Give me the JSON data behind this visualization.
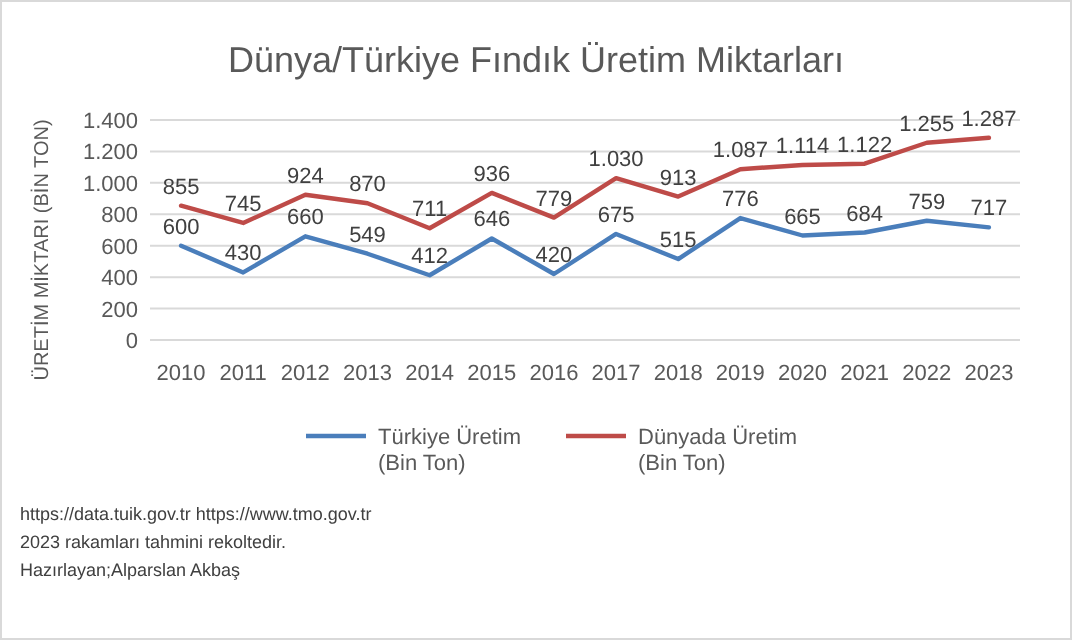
{
  "chart_data": {
    "type": "line",
    "title": "Dünya/Türkiye Fındık Üretim Miktarları",
    "ylabel": "ÜRETİM MİKTARI (BİN TON)",
    "categories": [
      "2010",
      "2011",
      "2012",
      "2013",
      "2014",
      "2015",
      "2016",
      "2017",
      "2018",
      "2019",
      "2020",
      "2021",
      "2022",
      "2023"
    ],
    "series": [
      {
        "name": "Türkiye Üretim (Bin Ton)",
        "color": "#4a7ebb",
        "values": [
          600,
          430,
          660,
          549,
          412,
          646,
          420,
          675,
          515,
          776,
          665,
          684,
          759,
          717
        ],
        "value_labels": [
          "600",
          "430",
          "660",
          "549",
          "412",
          "646",
          "420",
          "675",
          "515",
          "776",
          "665",
          "684",
          "759",
          "717"
        ]
      },
      {
        "name": "Dünyada Üretim (Bin Ton)",
        "color": "#be4b48",
        "values": [
          855,
          745,
          924,
          870,
          711,
          936,
          779,
          1030,
          913,
          1087,
          1114,
          1122,
          1255,
          1287
        ],
        "value_labels": [
          "855",
          "745",
          "924",
          "870",
          "711",
          "936",
          "779",
          "1.030",
          "913",
          "1.087",
          "1.114",
          "1.122",
          "1.255",
          "1.287"
        ]
      }
    ],
    "ylim": [
      0,
      1400
    ],
    "yticks": [
      0,
      200,
      400,
      600,
      800,
      {
        "value": 1000,
        "label": "1.000"
      },
      {
        "value": 1200,
        "label": "1.200"
      },
      {
        "value": 1400,
        "label": "1.400"
      }
    ],
    "grid": "y",
    "legend": "bottom",
    "marker": "none",
    "line_style": "solid",
    "annotations": [
      "https://data.tuik.gov.tr https://www.tmo.gov.tr",
      "2023 rakamları tahmini rekoltedir.",
      "Hazırlayan;Alparslan Akbaş"
    ]
  }
}
